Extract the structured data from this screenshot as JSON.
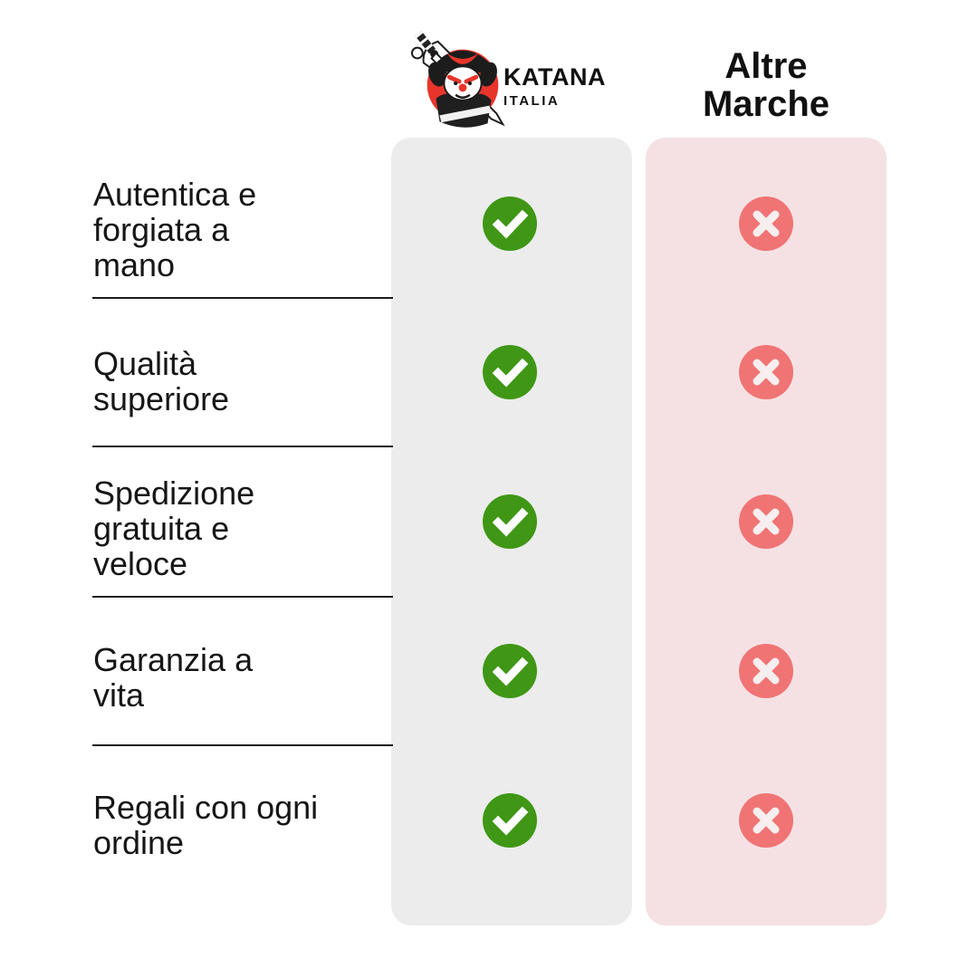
{
  "brand": {
    "logo_icon": "samurai-katana-logo",
    "logo_text": "KATANA",
    "logo_subtext": "ITALIA"
  },
  "competitor_header": {
    "line1": "Altre",
    "line2": "Marche"
  },
  "comparison": {
    "rows": [
      {
        "label_lines": [
          "Autentica e",
          "forgiata a",
          "mano"
        ],
        "brand_value": "check",
        "competitor_value": "cross"
      },
      {
        "label_lines": [
          "Qualità",
          "superiore"
        ],
        "brand_value": "check",
        "competitor_value": "cross"
      },
      {
        "label_lines": [
          "Spedizione",
          "gratuita e",
          "veloce"
        ],
        "brand_value": "check",
        "competitor_value": "cross"
      },
      {
        "label_lines": [
          "Garanzia a",
          "vita"
        ],
        "brand_value": "check",
        "competitor_value": "cross"
      },
      {
        "label_lines": [
          "Regali con ogni",
          "ordine"
        ],
        "brand_value": "check",
        "competitor_value": "cross"
      }
    ]
  },
  "colors": {
    "check_green": "#3f9715",
    "cross_red": "#f07474",
    "brand_column_bg": "#ececec",
    "competitor_column_bg": "#f5e1e4",
    "logo_red": "#e8352b",
    "text_black": "#161616"
  }
}
